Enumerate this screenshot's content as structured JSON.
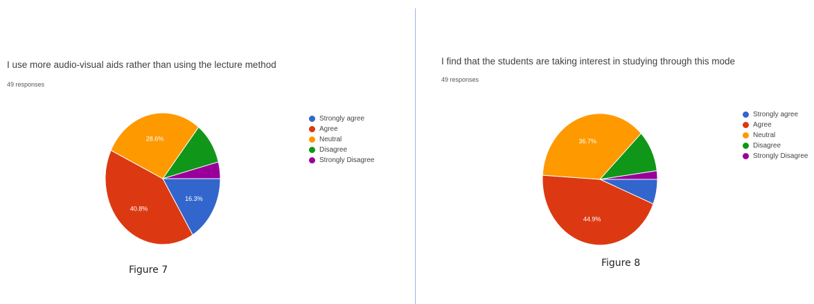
{
  "chart_data": [
    {
      "type": "pie",
      "title": "I use more audio-visual aids rather than using the lecture method",
      "subtitle": "49 responses",
      "caption": "Figure 7",
      "legend_position": "right",
      "categories": [
        "Strongly agree",
        "Agree",
        "Neutral",
        "Disagree",
        "Strongly Disagree"
      ],
      "values": [
        16.3,
        40.8,
        28.6,
        10.2,
        4.1
      ],
      "value_labels": [
        "16.3%",
        "40.8%",
        "28.6%",
        "",
        ""
      ],
      "colors": [
        "#3366cc",
        "#dc3912",
        "#ff9900",
        "#109618",
        "#990099"
      ]
    },
    {
      "type": "pie",
      "title": "I find that the students are taking interest in studying through this mode",
      "subtitle": "49 responses",
      "caption": "Figure 8",
      "legend_position": "right",
      "categories": [
        "Strongly agree",
        "Agree",
        "Neutral",
        "Disagree",
        "Strongly Disagree"
      ],
      "values": [
        6.1,
        44.9,
        36.7,
        10.2,
        2.1
      ],
      "value_labels": [
        "",
        "44.9%",
        "36.7%",
        "",
        ""
      ],
      "colors": [
        "#3366cc",
        "#dc3912",
        "#ff9900",
        "#109618",
        "#990099"
      ]
    }
  ]
}
